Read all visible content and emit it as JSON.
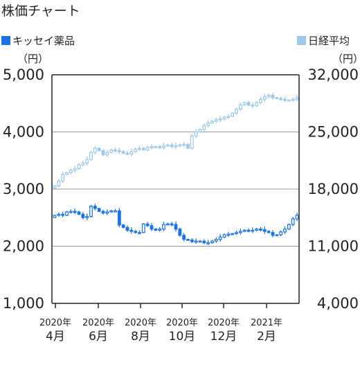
{
  "chart_data": {
    "type": "candlestick",
    "title": "株価チャート",
    "left_axis": {
      "series": "キッセイ薬品",
      "unit": "（円）",
      "ylim": [
        1000,
        5000
      ],
      "ticks": [
        "5,000",
        "4,000",
        "3,000",
        "2,000",
        "1,000"
      ],
      "tick_values": [
        5000,
        4000,
        3000,
        2000,
        1000
      ]
    },
    "right_axis": {
      "series": "日経平均",
      "unit": "（円）",
      "ylim": [
        4000,
        32000
      ],
      "ticks": [
        "32,000",
        "25,000",
        "18,000",
        "11,000",
        "4,000"
      ],
      "tick_values": [
        32000,
        25000,
        18000,
        11000,
        4000
      ]
    },
    "x_ticks": [
      {
        "year": "2020年",
        "month": "4月"
      },
      {
        "year": "2020年",
        "month": "6月"
      },
      {
        "year": "2020年",
        "month": "8月"
      },
      {
        "year": "2020年",
        "month": "10月"
      },
      {
        "year": "2020年",
        "month": "12月"
      },
      {
        "year": "2021年",
        "month": "2月"
      }
    ],
    "grid": true,
    "legend_placement": "top",
    "colors": {
      "kissei": "#1a73e8",
      "nikkei": "#9cc9e8",
      "axis": "#222222",
      "grid": "#999999"
    },
    "series": [
      {
        "name": "キッセイ薬品",
        "axis": "left",
        "color": "#1a73e8",
        "close": [
          2540,
          2560,
          2540,
          2600,
          2610,
          2600,
          2560,
          2500,
          2520,
          2700,
          2660,
          2610,
          2580,
          2600,
          2620,
          2620,
          2370,
          2330,
          2280,
          2260,
          2240,
          2240,
          2390,
          2360,
          2300,
          2280,
          2300,
          2380,
          2390,
          2380,
          2300,
          2190,
          2120,
          2110,
          2080,
          2090,
          2090,
          2060,
          2060,
          2090,
          2120,
          2160,
          2200,
          2210,
          2220,
          2240,
          2260,
          2280,
          2270,
          2280,
          2300,
          2290,
          2260,
          2240,
          2190,
          2200,
          2250,
          2300,
          2380,
          2480,
          2540
        ]
      },
      {
        "name": "日経平均",
        "axis": "right",
        "color": "#9cc9e8",
        "close": [
          18400,
          19000,
          19800,
          20000,
          20300,
          20500,
          21000,
          21200,
          21600,
          22500,
          23000,
          22700,
          22200,
          22500,
          22800,
          22700,
          22600,
          22400,
          22300,
          22600,
          22900,
          23000,
          22800,
          23100,
          23200,
          23200,
          23100,
          23300,
          23400,
          23200,
          23300,
          23400,
          23500,
          23000,
          24500,
          25000,
          25300,
          25800,
          26100,
          26300,
          26500,
          26600,
          26800,
          26900,
          27300,
          27800,
          28300,
          28600,
          28300,
          28200,
          28600,
          29000,
          29300,
          29500,
          29200,
          29100,
          29000,
          28900,
          28900,
          29000,
          29200
        ]
      }
    ]
  }
}
